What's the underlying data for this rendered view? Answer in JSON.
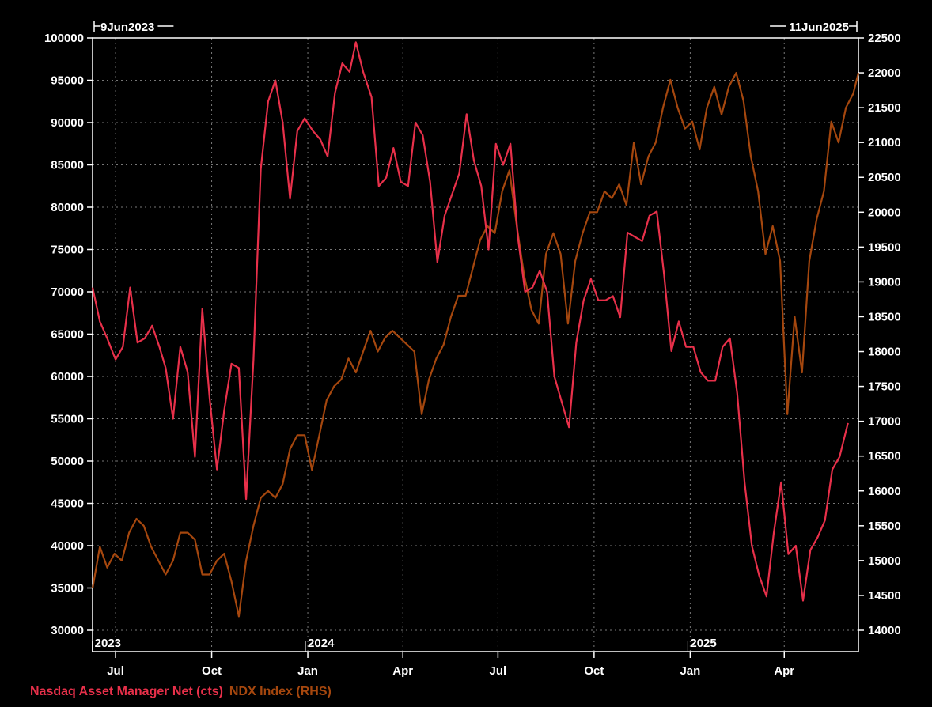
{
  "header": {
    "start_date": "9Jun2023",
    "end_date": "11Jun2025"
  },
  "legend": {
    "series1_label": "Nasdaq Asset Manager Net (cts)",
    "series2_label": "NDX Index (RHS)"
  },
  "colors": {
    "background": "#000000",
    "axis": "#ffffff",
    "grid": "#777777",
    "series1": "#e8304a",
    "series2": "#a5470e"
  },
  "chart_data": {
    "type": "line",
    "x_ticks": [
      "Jul",
      "Oct",
      "Jan",
      "Apr",
      "Jul",
      "Oct",
      "Jan",
      "Apr"
    ],
    "year_labels": [
      "2023",
      "2024",
      "2025"
    ],
    "left_axis": {
      "min": 30000,
      "max": 100000,
      "ticks": [
        30000,
        35000,
        40000,
        45000,
        50000,
        55000,
        60000,
        65000,
        70000,
        75000,
        80000,
        85000,
        90000,
        95000,
        100000
      ]
    },
    "right_axis": {
      "min": 14000,
      "max": 22500,
      "ticks": [
        14000,
        14500,
        15000,
        15500,
        16000,
        16500,
        17000,
        17500,
        18000,
        18500,
        19000,
        19500,
        20000,
        20500,
        21000,
        21500,
        22000,
        22500
      ]
    },
    "grid": true,
    "series": [
      {
        "name": "Nasdaq Asset Manager Net (cts)",
        "axis": "left",
        "points": [
          [
            "2023-06-09",
            70500
          ],
          [
            "2023-06-16",
            66500
          ],
          [
            "2023-06-23",
            64500
          ],
          [
            "2023-07-01",
            62000
          ],
          [
            "2023-07-08",
            63500
          ],
          [
            "2023-07-15",
            70500
          ],
          [
            "2023-07-22",
            64000
          ],
          [
            "2023-07-29",
            64500
          ],
          [
            "2023-08-05",
            66000
          ],
          [
            "2023-08-12",
            63500
          ],
          [
            "2023-08-18",
            61000
          ],
          [
            "2023-08-25",
            55000
          ],
          [
            "2023-09-01",
            63500
          ],
          [
            "2023-09-08",
            60500
          ],
          [
            "2023-09-15",
            50500
          ],
          [
            "2023-09-22",
            68000
          ],
          [
            "2023-09-29",
            57500
          ],
          [
            "2023-10-06",
            49000
          ],
          [
            "2023-10-13",
            56000
          ],
          [
            "2023-10-20",
            61500
          ],
          [
            "2023-10-27",
            61000
          ],
          [
            "2023-11-03",
            45500
          ],
          [
            "2023-11-10",
            62000
          ],
          [
            "2023-11-17",
            84500
          ],
          [
            "2023-11-24",
            92500
          ],
          [
            "2023-12-01",
            95000
          ],
          [
            "2023-12-08",
            90000
          ],
          [
            "2023-12-15",
            81000
          ],
          [
            "2023-12-22",
            89000
          ],
          [
            "2023-12-29",
            90500
          ],
          [
            "2024-01-06",
            89000
          ],
          [
            "2024-01-13",
            88000
          ],
          [
            "2024-01-20",
            86000
          ],
          [
            "2024-01-27",
            93500
          ],
          [
            "2024-02-03",
            97000
          ],
          [
            "2024-02-10",
            96000
          ],
          [
            "2024-02-16",
            99500
          ],
          [
            "2024-02-23",
            96000
          ],
          [
            "2024-03-02",
            93000
          ],
          [
            "2024-03-09",
            82500
          ],
          [
            "2024-03-16",
            83500
          ],
          [
            "2024-03-23",
            87000
          ],
          [
            "2024-03-30",
            83000
          ],
          [
            "2024-04-06",
            82500
          ],
          [
            "2024-04-13",
            90000
          ],
          [
            "2024-04-20",
            88500
          ],
          [
            "2024-04-27",
            83000
          ],
          [
            "2024-05-04",
            73500
          ],
          [
            "2024-05-11",
            79000
          ],
          [
            "2024-05-18",
            81500
          ],
          [
            "2024-05-25",
            84000
          ],
          [
            "2024-06-01",
            91000
          ],
          [
            "2024-06-08",
            85500
          ],
          [
            "2024-06-15",
            82500
          ],
          [
            "2024-06-22",
            75000
          ],
          [
            "2024-06-29",
            87500
          ],
          [
            "2024-07-06",
            85000
          ],
          [
            "2024-07-13",
            87500
          ],
          [
            "2024-07-20",
            76500
          ],
          [
            "2024-07-27",
            70000
          ],
          [
            "2024-08-03",
            70500
          ],
          [
            "2024-08-10",
            72500
          ],
          [
            "2024-08-17",
            70000
          ],
          [
            "2024-08-24",
            60000
          ],
          [
            "2024-08-31",
            57000
          ],
          [
            "2024-09-07",
            54000
          ],
          [
            "2024-09-14",
            64000
          ],
          [
            "2024-09-21",
            69000
          ],
          [
            "2024-09-28",
            71500
          ],
          [
            "2024-10-05",
            69000
          ],
          [
            "2024-10-12",
            69000
          ],
          [
            "2024-10-19",
            69500
          ],
          [
            "2024-10-26",
            67000
          ],
          [
            "2024-11-02",
            77000
          ],
          [
            "2024-11-09",
            76500
          ],
          [
            "2024-11-16",
            76000
          ],
          [
            "2024-11-23",
            79000
          ],
          [
            "2024-11-30",
            79500
          ],
          [
            "2024-12-07",
            72000
          ],
          [
            "2024-12-14",
            63000
          ],
          [
            "2024-12-21",
            66500
          ],
          [
            "2024-12-28",
            63500
          ],
          [
            "2025-01-04",
            63500
          ],
          [
            "2025-01-11",
            60500
          ],
          [
            "2025-01-18",
            59500
          ],
          [
            "2025-01-25",
            59500
          ],
          [
            "2025-02-01",
            63500
          ],
          [
            "2025-02-08",
            64500
          ],
          [
            "2025-02-15",
            58000
          ],
          [
            "2025-02-22",
            47500
          ],
          [
            "2025-03-01",
            40000
          ],
          [
            "2025-03-08",
            36500
          ],
          [
            "2025-03-15",
            34000
          ],
          [
            "2025-03-22",
            41500
          ],
          [
            "2025-03-29",
            47500
          ],
          [
            "2025-04-05",
            39000
          ],
          [
            "2025-04-12",
            40000
          ],
          [
            "2025-04-19",
            33500
          ],
          [
            "2025-04-26",
            39500
          ],
          [
            "2025-05-03",
            41000
          ],
          [
            "2025-05-10",
            43000
          ],
          [
            "2025-05-17",
            49000
          ],
          [
            "2025-05-24",
            50500
          ],
          [
            "2025-06-01",
            54500
          ]
        ]
      },
      {
        "name": "NDX Index (RHS)",
        "axis": "right",
        "points": [
          [
            "2023-06-09",
            14600
          ],
          [
            "2023-06-16",
            15200
          ],
          [
            "2023-06-23",
            14900
          ],
          [
            "2023-06-30",
            15100
          ],
          [
            "2023-07-07",
            15000
          ],
          [
            "2023-07-14",
            15400
          ],
          [
            "2023-07-21",
            15600
          ],
          [
            "2023-07-28",
            15500
          ],
          [
            "2023-08-04",
            15200
          ],
          [
            "2023-08-11",
            15000
          ],
          [
            "2023-08-18",
            14800
          ],
          [
            "2023-08-25",
            15000
          ],
          [
            "2023-09-01",
            15400
          ],
          [
            "2023-09-08",
            15400
          ],
          [
            "2023-09-15",
            15300
          ],
          [
            "2023-09-22",
            14800
          ],
          [
            "2023-09-29",
            14800
          ],
          [
            "2023-10-06",
            15000
          ],
          [
            "2023-10-13",
            15100
          ],
          [
            "2023-10-20",
            14700
          ],
          [
            "2023-10-27",
            14200
          ],
          [
            "2023-11-03",
            15000
          ],
          [
            "2023-11-10",
            15500
          ],
          [
            "2023-11-17",
            15900
          ],
          [
            "2023-11-24",
            16000
          ],
          [
            "2023-12-01",
            15900
          ],
          [
            "2023-12-08",
            16100
          ],
          [
            "2023-12-15",
            16600
          ],
          [
            "2023-12-22",
            16800
          ],
          [
            "2023-12-29",
            16800
          ],
          [
            "2024-01-05",
            16300
          ],
          [
            "2024-01-12",
            16800
          ],
          [
            "2024-01-19",
            17300
          ],
          [
            "2024-01-26",
            17500
          ],
          [
            "2024-02-02",
            17600
          ],
          [
            "2024-02-09",
            17900
          ],
          [
            "2024-02-16",
            17700
          ],
          [
            "2024-02-23",
            18000
          ],
          [
            "2024-03-01",
            18300
          ],
          [
            "2024-03-08",
            18000
          ],
          [
            "2024-03-15",
            18200
          ],
          [
            "2024-03-22",
            18300
          ],
          [
            "2024-03-29",
            18200
          ],
          [
            "2024-04-05",
            18100
          ],
          [
            "2024-04-12",
            18000
          ],
          [
            "2024-04-19",
            17100
          ],
          [
            "2024-04-26",
            17600
          ],
          [
            "2024-05-03",
            17900
          ],
          [
            "2024-05-10",
            18100
          ],
          [
            "2024-05-17",
            18500
          ],
          [
            "2024-05-24",
            18800
          ],
          [
            "2024-05-31",
            18800
          ],
          [
            "2024-06-07",
            19200
          ],
          [
            "2024-06-14",
            19600
          ],
          [
            "2024-06-21",
            19800
          ],
          [
            "2024-06-28",
            19700
          ],
          [
            "2024-07-05",
            20300
          ],
          [
            "2024-07-12",
            20600
          ],
          [
            "2024-07-19",
            19800
          ],
          [
            "2024-07-26",
            19100
          ],
          [
            "2024-08-02",
            18600
          ],
          [
            "2024-08-09",
            18400
          ],
          [
            "2024-08-16",
            19400
          ],
          [
            "2024-08-23",
            19700
          ],
          [
            "2024-08-30",
            19400
          ],
          [
            "2024-09-06",
            18400
          ],
          [
            "2024-09-13",
            19300
          ],
          [
            "2024-09-20",
            19700
          ],
          [
            "2024-09-27",
            20000
          ],
          [
            "2024-10-04",
            20000
          ],
          [
            "2024-10-11",
            20300
          ],
          [
            "2024-10-18",
            20200
          ],
          [
            "2024-10-25",
            20400
          ],
          [
            "2024-11-01",
            20100
          ],
          [
            "2024-11-08",
            21000
          ],
          [
            "2024-11-15",
            20400
          ],
          [
            "2024-11-22",
            20800
          ],
          [
            "2024-11-29",
            21000
          ],
          [
            "2024-12-06",
            21500
          ],
          [
            "2024-12-13",
            21900
          ],
          [
            "2024-12-20",
            21500
          ],
          [
            "2024-12-27",
            21200
          ],
          [
            "2025-01-03",
            21300
          ],
          [
            "2025-01-10",
            20900
          ],
          [
            "2025-01-17",
            21500
          ],
          [
            "2025-01-24",
            21800
          ],
          [
            "2025-01-31",
            21400
          ],
          [
            "2025-02-07",
            21800
          ],
          [
            "2025-02-14",
            22000
          ],
          [
            "2025-02-21",
            21600
          ],
          [
            "2025-02-28",
            20800
          ],
          [
            "2025-03-07",
            20300
          ],
          [
            "2025-03-14",
            19400
          ],
          [
            "2025-03-21",
            19800
          ],
          [
            "2025-03-28",
            19300
          ],
          [
            "2025-04-04",
            17100
          ],
          [
            "2025-04-11",
            18500
          ],
          [
            "2025-04-18",
            17700
          ],
          [
            "2025-04-25",
            19300
          ],
          [
            "2025-05-02",
            19900
          ],
          [
            "2025-05-09",
            20300
          ],
          [
            "2025-05-16",
            21300
          ],
          [
            "2025-05-23",
            21000
          ],
          [
            "2025-05-30",
            21500
          ],
          [
            "2025-06-06",
            21700
          ],
          [
            "2025-06-11",
            22000
          ]
        ]
      }
    ]
  }
}
